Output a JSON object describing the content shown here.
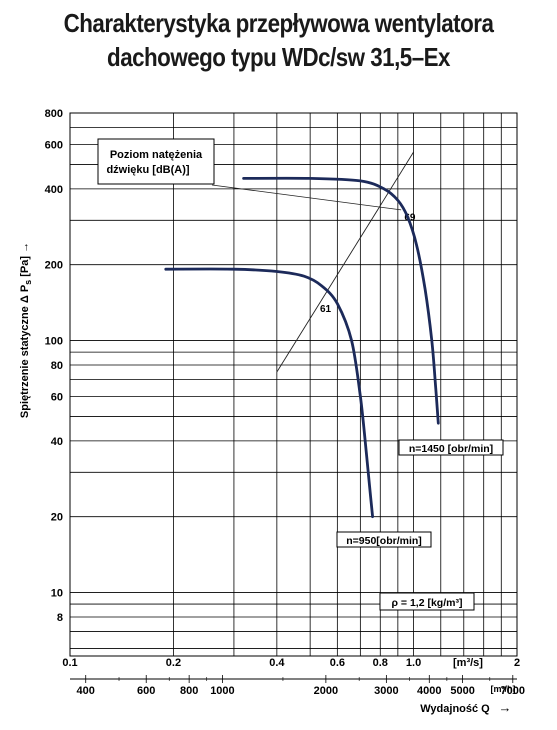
{
  "title_line1": "Charakterystyka przepływowa wentylatora",
  "title_line2": "dachowego typu WDc/sw 31,5–Ex",
  "chart_data": {
    "type": "line",
    "title": "Charakterystyka przepływowa wentylatora dachowego typu WDc/sw 31,5–Ex",
    "ylabel": "Spiętrzenie statyczne Δ P",
    "ylabel_sub": "s",
    "ylabel_unit": "[Pa]",
    "ylabel_arrow": "→",
    "xlabel": "Wydajność Q",
    "xlabel_arrow": "→",
    "x_scale": "log",
    "y_scale": "log",
    "x_unit_m3s": "[m³/s]",
    "x_unit_m3h": "[m³/h]",
    "xlim_m3s": [
      0.1,
      2
    ],
    "ylim": [
      5.6,
      800
    ],
    "grid": true,
    "y_ticks": [
      "8",
      "10",
      "20",
      "40",
      "60",
      "80",
      "100",
      "200",
      "400",
      "600",
      "800"
    ],
    "x_ticks_m3s": [
      "0.1",
      "0.2",
      "0.4",
      "0.6",
      "0.8",
      "1.0",
      "2"
    ],
    "x_ticks_m3h": [
      "400",
      "600",
      "800",
      "1000",
      "2000",
      "3000",
      "4000",
      "5000",
      "7000"
    ],
    "series": [
      {
        "name": "n=1450 [obr/min]",
        "x": [
          0.32,
          0.5,
          0.7,
          0.82,
          0.9,
          0.96,
          1.02,
          1.08,
          1.13,
          1.16,
          1.18
        ],
        "y": [
          440,
          440,
          430,
          400,
          360,
          310,
          240,
          160,
          100,
          65,
          47
        ]
      },
      {
        "name": "n=950[obr/min]",
        "x": [
          0.19,
          0.3,
          0.4,
          0.48,
          0.54,
          0.6,
          0.66,
          0.7,
          0.73,
          0.75,
          0.76
        ],
        "y": [
          192,
          192,
          188,
          180,
          165,
          140,
          100,
          60,
          35,
          24,
          20
        ]
      }
    ],
    "sound_line": {
      "x": [
        0.4,
        1.0
      ],
      "y": [
        75,
        560
      ],
      "labels": [
        "61",
        "69"
      ]
    },
    "annotations": {
      "sound_box": [
        "Poziom natężenia",
        "dźwięku [dB(A)]"
      ],
      "rho": "ρ = 1,2 [kg/m³]"
    },
    "colors": {
      "curve": "#1c2a5a",
      "grid": "#000000",
      "sound_line": "#222222"
    }
  }
}
